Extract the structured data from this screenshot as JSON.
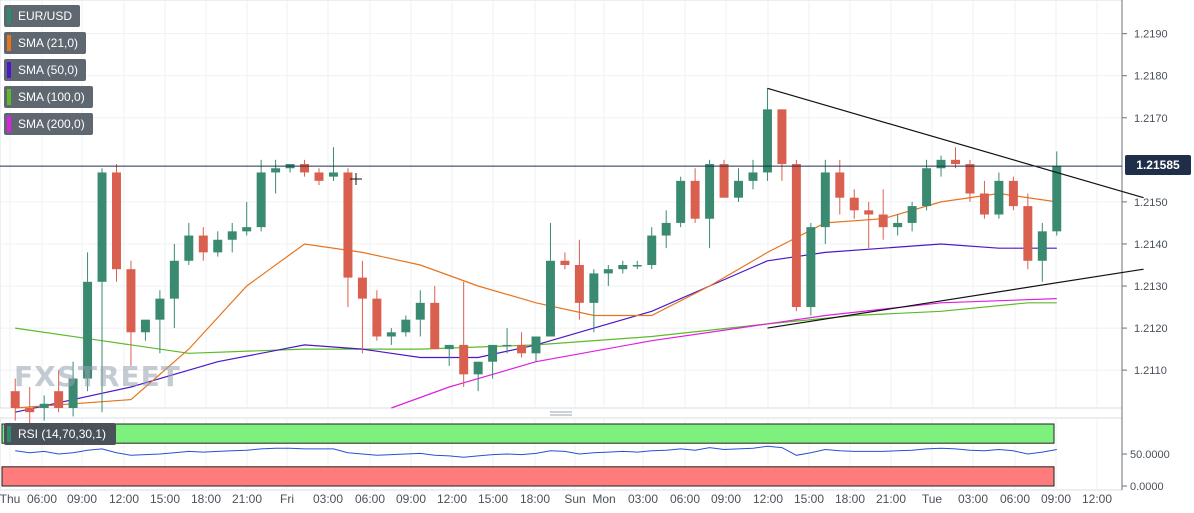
{
  "legend": [
    {
      "label": "EUR/USD",
      "color": "#2e8b6e"
    },
    {
      "label": "SMA (21,0)",
      "color": "#e8741c"
    },
    {
      "label": "SMA (50,0)",
      "color": "#4a18c8"
    },
    {
      "label": "SMA (100,0)",
      "color": "#5dbb2a"
    },
    {
      "label": "SMA (200,0)",
      "color": "#e020e0"
    }
  ],
  "rsi_label": "RSI (14,70,30,1)",
  "watermark": "FXSTREET",
  "last_price": "1.21585",
  "chart_data": {
    "type": "candlestick",
    "instrument": "EUR/USD",
    "price_axis": {
      "ticks": [
        "1.2190",
        "1.2180",
        "1.2170",
        "1.2150",
        "1.2140",
        "1.2130",
        "1.2120",
        "1.2110"
      ],
      "ylim": [
        1.2101,
        1.2198
      ]
    },
    "rsi_axis": {
      "ticks": [
        "50.0000",
        "0.0000"
      ],
      "overbought": 70,
      "oversold": 30
    },
    "x_ticks": [
      "Thu",
      "06:00",
      "09:00",
      "12:00",
      "15:00",
      "18:00",
      "21:00",
      "Fri",
      "03:00",
      "06:00",
      "09:00",
      "12:00",
      "15:00",
      "18:00",
      "Sun",
      "Mon",
      "03:00",
      "06:00",
      "09:00",
      "12:00",
      "15:00",
      "18:00",
      "21:00",
      "Tue",
      "03:00",
      "06:00",
      "09:00",
      "12:00"
    ],
    "up_color": "#3a8a72",
    "down_color": "#d9604f",
    "candles": [
      [
        1.2105,
        1.2108,
        1.2098,
        1.2101
      ],
      [
        1.2101,
        1.2106,
        1.2097,
        1.21
      ],
      [
        1.2101,
        1.2104,
        1.2098,
        1.2102
      ],
      [
        1.2105,
        1.211,
        1.21,
        1.2101
      ],
      [
        1.2101,
        1.2112,
        1.2099,
        1.2108
      ],
      [
        1.2108,
        1.2138,
        1.2105,
        1.2131
      ],
      [
        1.2131,
        1.2158,
        1.21,
        1.2157
      ],
      [
        1.2157,
        1.2159,
        1.2131,
        1.2134
      ],
      [
        1.2134,
        1.2136,
        1.2111,
        1.2119
      ],
      [
        1.2119,
        1.2122,
        1.2117,
        1.2122
      ],
      [
        1.2122,
        1.2129,
        1.2114,
        1.2127
      ],
      [
        1.2127,
        1.214,
        1.212,
        1.2136
      ],
      [
        1.2136,
        1.2145,
        1.2135,
        1.2142
      ],
      [
        1.2142,
        1.2144,
        1.2136,
        1.2138
      ],
      [
        1.2138,
        1.2143,
        1.2137,
        1.2141
      ],
      [
        1.2141,
        1.2145,
        1.2138,
        1.2143
      ],
      [
        1.2143,
        1.215,
        1.2142,
        1.2144
      ],
      [
        1.2144,
        1.216,
        1.2143,
        1.2157
      ],
      [
        1.2157,
        1.216,
        1.2152,
        1.2158
      ],
      [
        1.2158,
        1.2159,
        1.2157,
        1.2159
      ],
      [
        1.2159,
        1.216,
        1.2156,
        1.2157
      ],
      [
        1.2157,
        1.2158,
        1.2154,
        1.2155
      ],
      [
        1.2156,
        1.2163,
        1.2155,
        1.2157
      ],
      [
        1.2157,
        1.2158,
        1.2125,
        1.2132
      ],
      [
        1.2132,
        1.2136,
        1.2114,
        1.2127
      ],
      [
        1.2127,
        1.2129,
        1.2117,
        1.2118
      ],
      [
        1.2118,
        1.212,
        1.2116,
        1.2119
      ],
      [
        1.2119,
        1.2123,
        1.2118,
        1.2122
      ],
      [
        1.2122,
        1.2129,
        1.2118,
        1.2126
      ],
      [
        1.2126,
        1.213,
        1.2115,
        1.2115
      ],
      [
        1.2115,
        1.2116,
        1.2111,
        1.2116
      ],
      [
        1.2116,
        1.2131,
        1.2106,
        1.2109
      ],
      [
        1.2109,
        1.2112,
        1.2105,
        1.2112
      ],
      [
        1.2112,
        1.2116,
        1.2108,
        1.2116
      ],
      [
        1.2116,
        1.212,
        1.2114,
        1.2116
      ],
      [
        1.2116,
        1.2119,
        1.2113,
        1.2114
      ],
      [
        1.2114,
        1.2118,
        1.2112,
        1.2118
      ],
      [
        1.2118,
        1.2145,
        1.2118,
        1.2136
      ],
      [
        1.2136,
        1.2138,
        1.2134,
        1.2135
      ],
      [
        1.2135,
        1.2141,
        1.2122,
        1.2126
      ],
      [
        1.2126,
        1.2134,
        1.2119,
        1.2133
      ],
      [
        1.2133,
        1.2135,
        1.213,
        1.2134
      ],
      [
        1.2134,
        1.2136,
        1.2133,
        1.2135
      ],
      [
        1.2135,
        1.2136,
        1.2134,
        1.2135
      ],
      [
        1.2135,
        1.2144,
        1.2134,
        1.2142
      ],
      [
        1.2142,
        1.2148,
        1.2139,
        1.2145
      ],
      [
        1.2145,
        1.2156,
        1.2144,
        1.2155
      ],
      [
        1.2155,
        1.2158,
        1.2145,
        1.2146
      ],
      [
        1.2146,
        1.216,
        1.2139,
        1.2159
      ],
      [
        1.2159,
        1.216,
        1.2151,
        1.2151
      ],
      [
        1.2151,
        1.2158,
        1.215,
        1.2155
      ],
      [
        1.2155,
        1.216,
        1.2153,
        1.2157
      ],
      [
        1.2157,
        1.2177,
        1.2155,
        1.2172
      ],
      [
        1.2172,
        1.2172,
        1.2155,
        1.2159
      ],
      [
        1.2159,
        1.216,
        1.2124,
        1.2125
      ],
      [
        1.2125,
        1.2145,
        1.2123,
        1.2144
      ],
      [
        1.2144,
        1.216,
        1.214,
        1.2157
      ],
      [
        1.2157,
        1.216,
        1.2147,
        1.2151
      ],
      [
        1.2151,
        1.2153,
        1.2146,
        1.2148
      ],
      [
        1.2148,
        1.215,
        1.2139,
        1.2147
      ],
      [
        1.2147,
        1.2153,
        1.2141,
        1.2144
      ],
      [
        1.2144,
        1.2147,
        1.2142,
        1.2145
      ],
      [
        1.2145,
        1.215,
        1.2143,
        1.2149
      ],
      [
        1.2149,
        1.216,
        1.2148,
        1.2158
      ],
      [
        1.2158,
        1.2161,
        1.2156,
        1.216
      ],
      [
        1.216,
        1.2163,
        1.2158,
        1.2159
      ],
      [
        1.2159,
        1.216,
        1.215,
        1.2152
      ],
      [
        1.2152,
        1.2155,
        1.2146,
        1.2147
      ],
      [
        1.2147,
        1.2157,
        1.2146,
        1.2155
      ],
      [
        1.2155,
        1.2156,
        1.2148,
        1.2149
      ],
      [
        1.2149,
        1.2152,
        1.2134,
        1.2136
      ],
      [
        1.2136,
        1.2145,
        1.2131,
        1.2143
      ],
      [
        1.2143,
        1.2162,
        1.2142,
        1.21585
      ]
    ],
    "sma_21": [
      [
        0,
        1.2101
      ],
      [
        8,
        1.2103
      ],
      [
        12,
        1.2115
      ],
      [
        16,
        1.213
      ],
      [
        20,
        1.214
      ],
      [
        24,
        1.2138
      ],
      [
        28,
        1.2135
      ],
      [
        32,
        1.213
      ],
      [
        36,
        1.2126
      ],
      [
        40,
        1.2123
      ],
      [
        44,
        1.2123
      ],
      [
        48,
        1.213
      ],
      [
        52,
        1.2138
      ],
      [
        56,
        1.2145
      ],
      [
        60,
        1.2146
      ],
      [
        64,
        1.215
      ],
      [
        68,
        1.2152
      ],
      [
        72,
        1.215
      ]
    ],
    "sma_50": [
      [
        0,
        1.21
      ],
      [
        8,
        1.2106
      ],
      [
        14,
        1.2112
      ],
      [
        20,
        1.2116
      ],
      [
        24,
        1.2115
      ],
      [
        28,
        1.2113
      ],
      [
        32,
        1.2113
      ],
      [
        36,
        1.2116
      ],
      [
        40,
        1.212
      ],
      [
        44,
        1.2124
      ],
      [
        48,
        1.213
      ],
      [
        52,
        1.2136
      ],
      [
        56,
        1.2138
      ],
      [
        60,
        1.2139
      ],
      [
        64,
        1.214
      ],
      [
        68,
        1.2139
      ],
      [
        72,
        1.2139
      ]
    ],
    "sma_100": [
      [
        0,
        1.212
      ],
      [
        6,
        1.2117
      ],
      [
        12,
        1.2114
      ],
      [
        20,
        1.2115
      ],
      [
        28,
        1.2115
      ],
      [
        36,
        1.2116
      ],
      [
        44,
        1.2118
      ],
      [
        52,
        1.2121
      ],
      [
        58,
        1.2123
      ],
      [
        64,
        1.2124
      ],
      [
        70,
        1.2126
      ],
      [
        72,
        1.2126
      ]
    ],
    "sma_200": [
      [
        26,
        1.2101
      ],
      [
        30,
        1.2106
      ],
      [
        36,
        1.2112
      ],
      [
        44,
        1.2117
      ],
      [
        50,
        1.212
      ],
      [
        56,
        1.2123
      ],
      [
        64,
        1.2126
      ],
      [
        72,
        1.2127
      ]
    ],
    "trendlines": [
      {
        "from": [
          1.2177,
          52
        ],
        "to": [
          1.2151,
          78
        ]
      },
      {
        "from": [
          1.212,
          52
        ],
        "to": [
          1.2134,
          78
        ]
      }
    ],
    "rsi_values": [
      55,
      52,
      54,
      50,
      52,
      56,
      58,
      52,
      48,
      49,
      50,
      52,
      54,
      53,
      54,
      55,
      56,
      58,
      59,
      59,
      58,
      58,
      58,
      52,
      50,
      48,
      49,
      50,
      51,
      48,
      47,
      45,
      47,
      49,
      50,
      49,
      51,
      55,
      54,
      50,
      52,
      53,
      54,
      53,
      55,
      56,
      58,
      56,
      60,
      57,
      58,
      59,
      62,
      60,
      48,
      52,
      57,
      55,
      54,
      54,
      54,
      55,
      56,
      58,
      59,
      58,
      56,
      55,
      57,
      55,
      50,
      53,
      57
    ]
  }
}
